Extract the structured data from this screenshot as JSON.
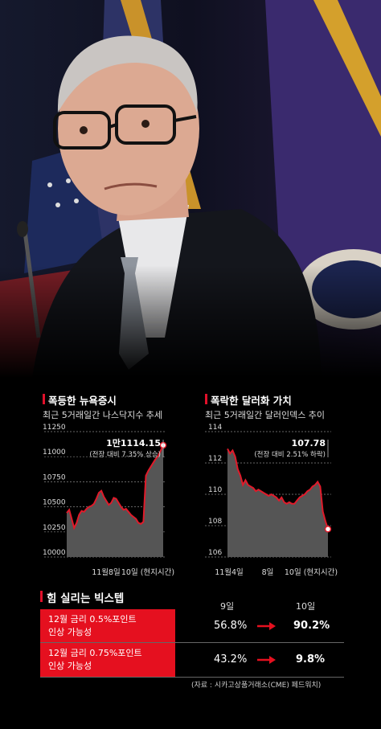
{
  "colors": {
    "accent_red": "#e5101f",
    "area_fill": "#555555",
    "line_red": "#e01a2a"
  },
  "left_panel": {
    "title": "폭등한 뉴욕증시",
    "subtitle": "최근 5거래일간 나스닥지수 추세",
    "callout_value": "1만1114.15",
    "callout_note": "(전장 대비 7.35% 상승)"
  },
  "right_panel": {
    "title": "폭락한 달러화 가치",
    "subtitle": "최근 5거래일간 달러인덱스 추이",
    "callout_value": "107.78",
    "callout_note": "(전장 대비 2.51% 하락)"
  },
  "table": {
    "title": "힘 실리는 빅스텝",
    "col1": "9일",
    "col2": "10일",
    "rows": [
      {
        "label_line1": "12월 금리 0.5%포인트",
        "label_line2": "인상 가능성",
        "v1": "56.8%",
        "v2": "90.2%"
      },
      {
        "label_line1": "12월 금리 0.75%포인트",
        "label_line2": "인상 가능성",
        "v1": "43.2%",
        "v2": "9.8%"
      }
    ],
    "source": "(자료 : 시카고상품거래소(CME) 페드워치)"
  },
  "chart_data": [
    {
      "type": "area",
      "ylim": [
        10000,
        11250
      ],
      "yticks": [
        "11250",
        "11000",
        "10750",
        "10500",
        "10250",
        "10000"
      ],
      "xticks": [
        "11월8일",
        "10일 (현지시간)"
      ],
      "series": [
        {
          "values": [
            10440,
            10470,
            10380,
            10290,
            10340,
            10420,
            10460,
            10450,
            10480,
            10500,
            10510,
            10530,
            10580,
            10640,
            10660,
            10600,
            10560,
            10520,
            10540,
            10590,
            10580,
            10540,
            10500,
            10470,
            10480,
            10450,
            10420,
            10400,
            10380,
            10340,
            10330,
            10350,
            10810,
            10860,
            10900,
            10940,
            10980,
            11010,
            11060,
            11114.15
          ]
        }
      ]
    },
    {
      "type": "area",
      "ylim": [
        106,
        114
      ],
      "yticks": [
        "114",
        "112",
        "110",
        "108",
        "106"
      ],
      "xticks": [
        "11월4일",
        "8일",
        "10일 (현지시간)"
      ],
      "series": [
        {
          "values": [
            112.9,
            112.6,
            112.8,
            112.4,
            111.6,
            111.2,
            110.6,
            110.9,
            110.6,
            110.5,
            110.4,
            110.2,
            110.3,
            110.2,
            110.1,
            110.0,
            109.9,
            110.0,
            109.9,
            109.8,
            109.6,
            109.8,
            109.5,
            109.4,
            109.5,
            109.4,
            109.4,
            109.6,
            109.8,
            109.9,
            110.0,
            110.2,
            110.3,
            110.5,
            110.6,
            110.8,
            110.5,
            108.9,
            108.3,
            107.78
          ]
        }
      ]
    }
  ]
}
